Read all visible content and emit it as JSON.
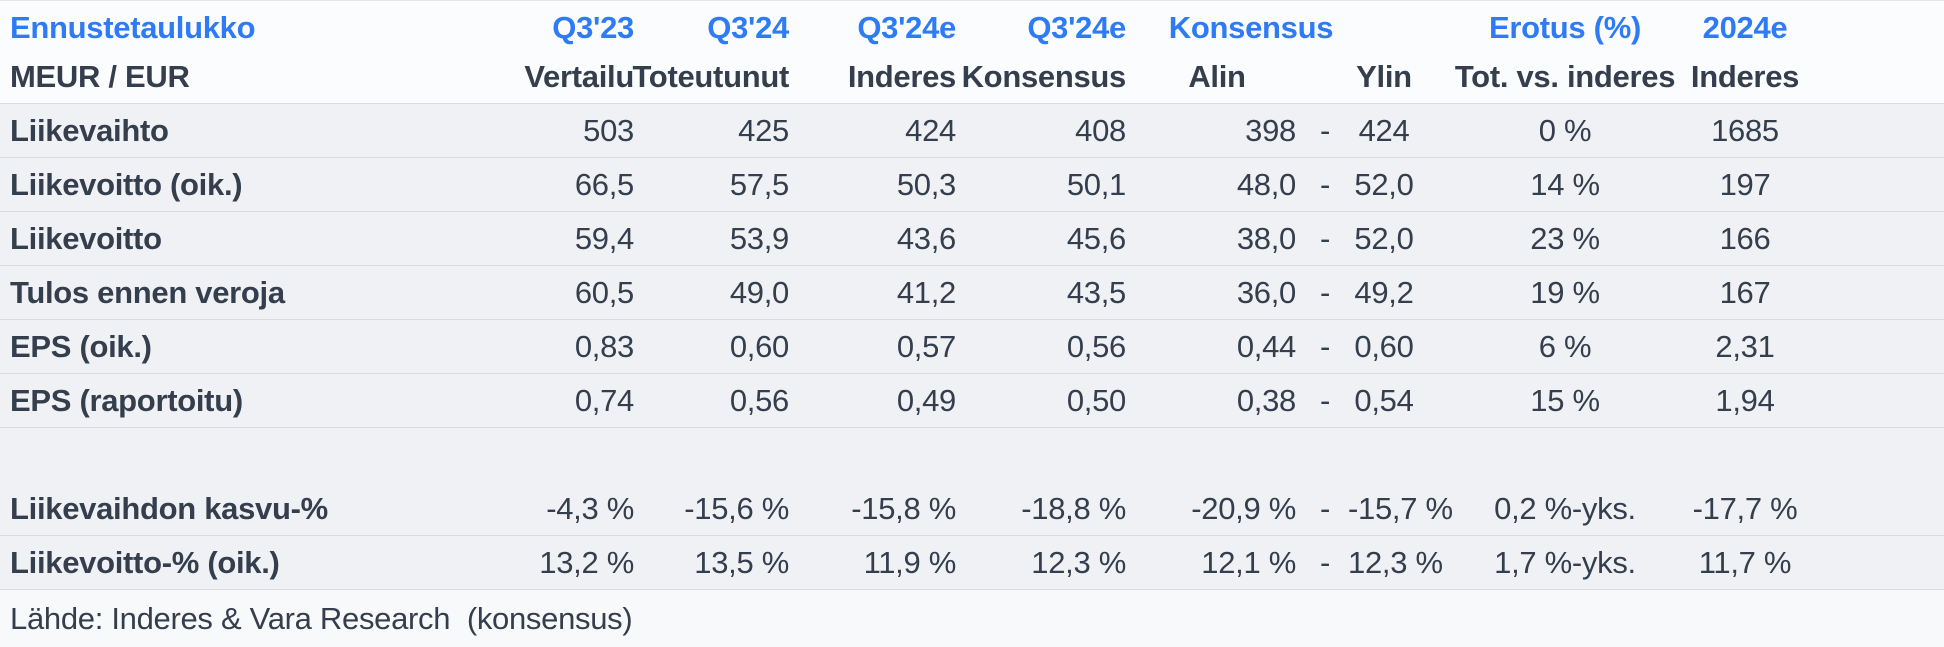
{
  "chart_data": {
    "type": "table",
    "title": "Ennustetaulukko",
    "unit": "MEUR / EUR",
    "range_separator": "-",
    "columns_top": {
      "q3_23": "Q3'23",
      "q3_24": "Q3'24",
      "q3_24e_inderes": "Q3'24e",
      "q3_24e_konsensus": "Q3'24e",
      "konsensus": "Konsensus",
      "erotus": "Erotus (%)",
      "y2024e": "2024e"
    },
    "columns_sub": {
      "vertailu": "Vertailu",
      "toteutunut": "Toteutunut",
      "inderes": "Inderes",
      "konsensus": "Konsensus",
      "alin": "Alin",
      "ylin": "Ylin",
      "tot_vs_inderes": "Tot. vs. inderes",
      "inderes2": "Inderes"
    },
    "rows": [
      {
        "label": "Liikevaihto",
        "vertailu": "503",
        "toteutunut": "425",
        "inderes": "424",
        "konsensus": "408",
        "alin": "398",
        "dash": "-",
        "ylin": "424",
        "erotus": "0 %",
        "y2024": "1685"
      },
      {
        "label": "Liikevoitto (oik.)",
        "vertailu": "66,5",
        "toteutunut": "57,5",
        "inderes": "50,3",
        "konsensus": "50,1",
        "alin": "48,0",
        "dash": "-",
        "ylin": "52,0",
        "erotus": "14 %",
        "y2024": "197"
      },
      {
        "label": "Liikevoitto",
        "vertailu": "59,4",
        "toteutunut": "53,9",
        "inderes": "43,6",
        "konsensus": "45,6",
        "alin": "38,0",
        "dash": "-",
        "ylin": "52,0",
        "erotus": "23 %",
        "y2024": "166"
      },
      {
        "label": "Tulos ennen veroja",
        "vertailu": "60,5",
        "toteutunut": "49,0",
        "inderes": "41,2",
        "konsensus": "43,5",
        "alin": "36,0",
        "dash": "-",
        "ylin": "49,2",
        "erotus": "19 %",
        "y2024": "167"
      },
      {
        "label": "EPS (oik.)",
        "vertailu": "0,83",
        "toteutunut": "0,60",
        "inderes": "0,57",
        "konsensus": "0,56",
        "alin": "0,44",
        "dash": "-",
        "ylin": "0,60",
        "erotus": "6 %",
        "y2024": "2,31"
      },
      {
        "label": "EPS (raportoitu)",
        "vertailu": "0,74",
        "toteutunut": "0,56",
        "inderes": "0,49",
        "konsensus": "0,50",
        "alin": "0,38",
        "dash": "-",
        "ylin": "0,54",
        "erotus": "15 %",
        "y2024": "1,94"
      },
      {
        "label": "Liikevaihdon kasvu-%",
        "vertailu": "-4,3 %",
        "toteutunut": "-15,6 %",
        "inderes": "-15,8 %",
        "konsensus": "-18,8 %",
        "alin": "-20,9 %",
        "dash": "-",
        "ylin": "-15,7 %",
        "erotus": "0,2 %-yks.",
        "y2024": "-17,7 %"
      },
      {
        "label": "Liikevoitto-% (oik.)",
        "vertailu": "13,2 %",
        "toteutunut": "13,5 %",
        "inderes": "11,9 %",
        "konsensus": "12,3 %",
        "alin": "12,1 %",
        "dash": "-",
        "ylin": "12,3 %",
        "erotus": "1,7 %-yks.",
        "y2024": "11,7 %"
      }
    ],
    "source": "Lähde: Inderes & Vara Research  (konsensus)",
    "colors": {
      "accent_blue": "#2e7bf5",
      "text_dark": "#343e4d",
      "row_background": "#eff1f5",
      "divider": "#d9dbe0"
    }
  }
}
